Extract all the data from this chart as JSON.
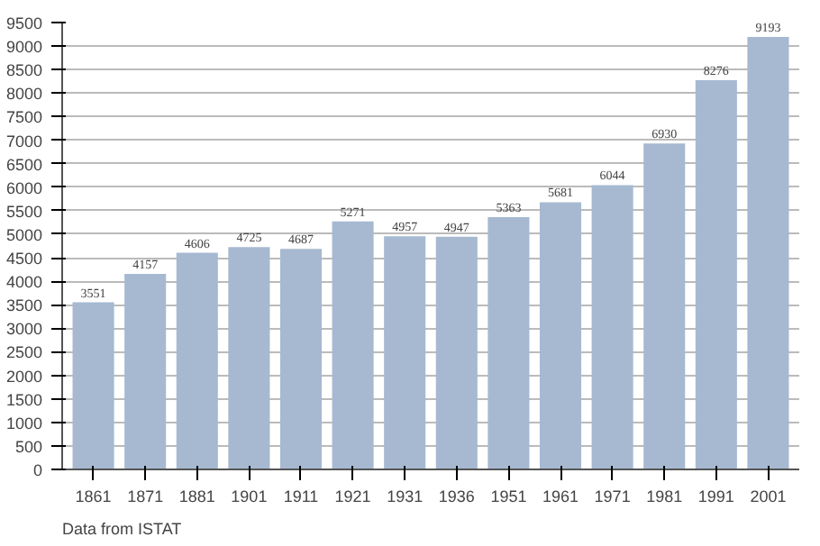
{
  "chart_data": {
    "type": "bar",
    "categories": [
      "1861",
      "1871",
      "1881",
      "1901",
      "1911",
      "1921",
      "1931",
      "1936",
      "1951",
      "1961",
      "1971",
      "1981",
      "1991",
      "2001"
    ],
    "values": [
      3551,
      4157,
      4606,
      4725,
      4687,
      5271,
      4957,
      4947,
      5363,
      5681,
      6044,
      6930,
      8276,
      9193
    ],
    "color": "#a6b9d1",
    "ylim": [
      0,
      9500
    ],
    "yticks": [
      0,
      500,
      1000,
      1500,
      2000,
      2500,
      3000,
      3500,
      4000,
      4500,
      5000,
      5500,
      6000,
      6500,
      7000,
      7500,
      8000,
      8500,
      9000,
      9500
    ],
    "grid": "y",
    "data_labels": true,
    "annotations": [
      "Data from ISTAT"
    ]
  }
}
